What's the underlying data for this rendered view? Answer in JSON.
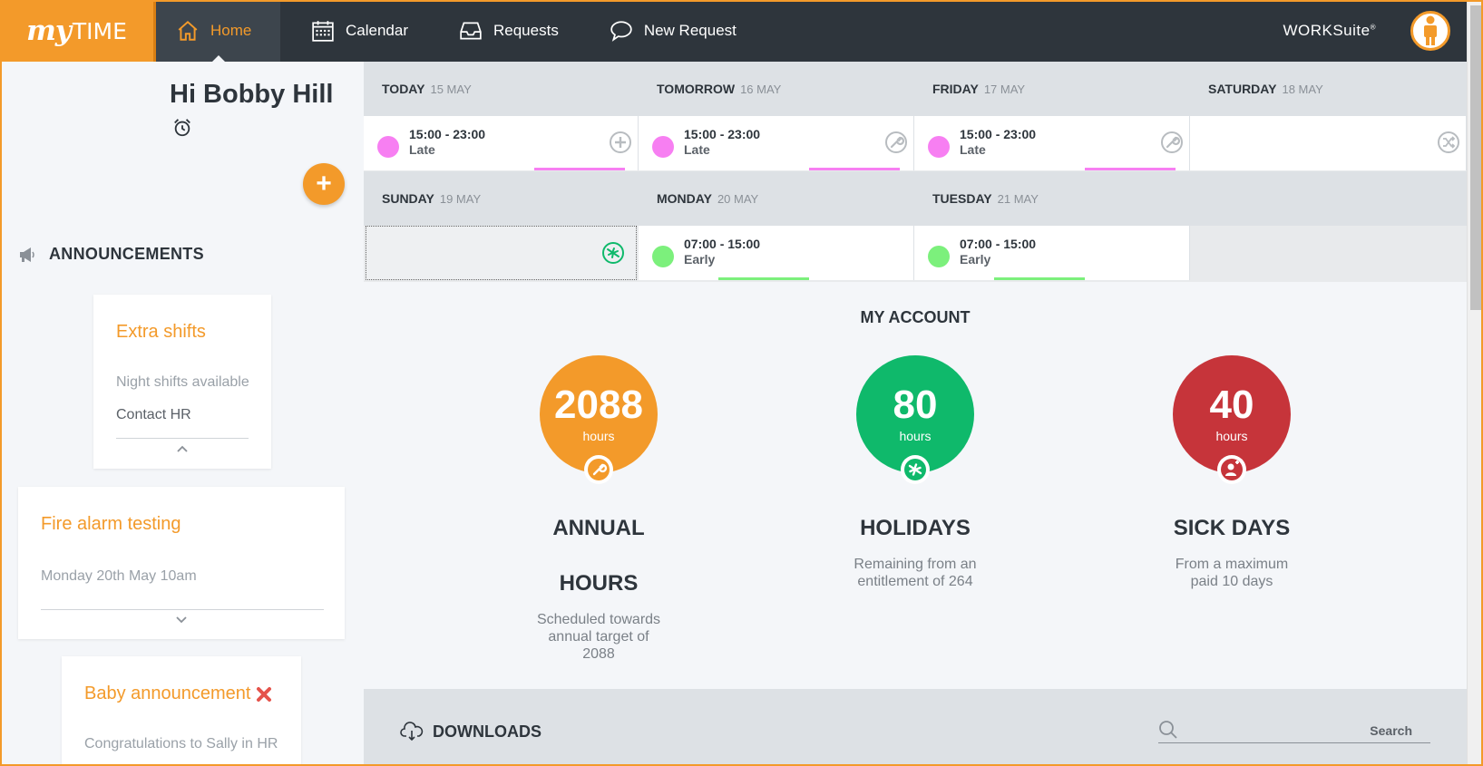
{
  "app": {
    "logo_my": "my",
    "logo_time": "TIME",
    "brand": "WORKSuite",
    "brand_mark": "®"
  },
  "nav": {
    "home": "Home",
    "calendar": "Calendar",
    "requests": "Requests",
    "new_request": "New Request"
  },
  "user": {
    "greeting": "Hi Bobby Hill"
  },
  "announcements": {
    "heading": "ANNOUNCEMENTS",
    "items": [
      {
        "title": "Extra shifts",
        "line1": "Night shifts available",
        "line2": "Contact HR"
      },
      {
        "title": "Fire alarm testing",
        "line1": "Monday 20th May 10am"
      },
      {
        "title": "Baby announcement",
        "line1": "Congratulations to Sally in HR"
      }
    ]
  },
  "schedule": {
    "days": [
      {
        "name": "TODAY",
        "date": "15 MAY",
        "time": "15:00 - 23:00",
        "label": "Late"
      },
      {
        "name": "TOMORROW",
        "date": "16 MAY",
        "time": "15:00 - 23:00",
        "label": "Late"
      },
      {
        "name": "FRIDAY",
        "date": "17 MAY",
        "time": "15:00 - 23:00",
        "label": "Late"
      },
      {
        "name": "SATURDAY",
        "date": "18 MAY"
      },
      {
        "name": "SUNDAY",
        "date": "19 MAY"
      },
      {
        "name": "MONDAY",
        "date": "20 MAY",
        "time": "07:00 - 15:00",
        "label": "Early"
      },
      {
        "name": "TUESDAY",
        "date": "21 MAY",
        "time": "07:00 - 15:00",
        "label": "Early"
      }
    ]
  },
  "account": {
    "heading": "MY ACCOUNT",
    "metrics": [
      {
        "value": "2088",
        "unit": "hours",
        "label_1": "ANNUAL",
        "label_2": "HOURS",
        "desc": "Scheduled towards annual target of 2088"
      },
      {
        "value": "80",
        "unit": "hours",
        "label_1": "HOLIDAYS",
        "desc": "Remaining from an entitlement of 264"
      },
      {
        "value": "40",
        "unit": "hours",
        "label_1": "SICK DAYS",
        "desc": "From a maximum paid 10 days"
      }
    ]
  },
  "downloads": {
    "heading": "DOWNLOADS",
    "search_placeholder": "Search"
  },
  "colors": {
    "accent": "#f39a2a",
    "nav_bg": "#2e353c",
    "late": "#f77ff2",
    "early": "#7cf07c",
    "holiday": "#0fb96b",
    "sick": "#c6343a"
  }
}
